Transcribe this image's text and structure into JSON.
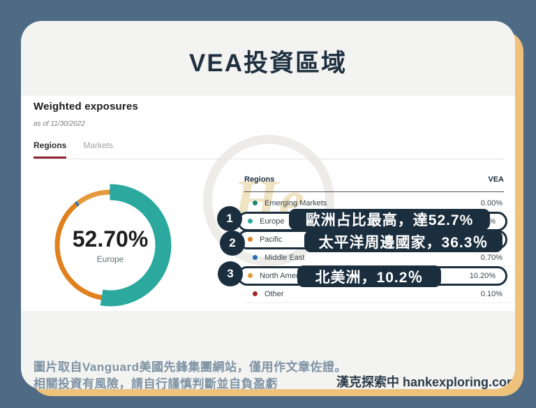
{
  "title": "VEA投資區域",
  "colors": {
    "background": "#4e6a84",
    "card": "#f3f3f1",
    "card_shadow": "#efc27c",
    "navy": "#1b2e3e",
    "tab_underline_red": "#8c2332",
    "europe_teal": "#2ba99f",
    "pacific_orange": "#e0811f",
    "middle_east_blue": "#2470b3",
    "north_america_orange": "#e59a3b",
    "other_red": "#9e2b25",
    "emerging_teal": "#1d8574"
  },
  "watermark": "He",
  "screenshot": {
    "heading": "Weighted exposures",
    "as_of": "as of 11/30/2022",
    "tabs": [
      {
        "label": "Regions",
        "active": true
      },
      {
        "label": "Markets",
        "active": false
      }
    ],
    "table": {
      "columns": [
        "Regions",
        "VEA"
      ],
      "rows": [
        {
          "label": "Emerging Markets",
          "value": "0.00%",
          "dot_color": "#1d8574",
          "highlighted": false
        },
        {
          "label": "Europe",
          "value": "52.70%",
          "dot_color": "#2ba99f",
          "highlighted": true
        },
        {
          "label": "Pacific",
          "value": "36.30%",
          "dot_color": "#e0811f",
          "highlighted": true
        },
        {
          "label": "Middle East",
          "value": "0.70%",
          "dot_color": "#2470b3",
          "highlighted": false
        },
        {
          "label": "North America",
          "value": "10.20%",
          "dot_color": "#e59a3b",
          "highlighted": true
        },
        {
          "label": "Other",
          "value": "0.10%",
          "dot_color": "#9e2b25",
          "highlighted": false
        }
      ]
    }
  },
  "annotations": [
    {
      "number": "1",
      "text": "歐洲占比最高，達52.7%"
    },
    {
      "number": "2",
      "text": "太平洋周邊國家，36.3％"
    },
    {
      "number": "3",
      "text": "北美洲，10.2％"
    }
  ],
  "footer": {
    "line1": "圖片取自Vanguard美國先鋒集團網站，僅用作文章佐證。",
    "line2": "相關投資有風險，請自行謹慎判斷並自負盈虧",
    "brand": "漢克探索中 hankexploring.com"
  },
  "chart_data": {
    "type": "pie",
    "variant": "donut",
    "title": "Weighted exposures — Regions (VEA)",
    "center_label": "52.70%",
    "center_sublabel": "Europe",
    "start_angle_deg": 0,
    "direction": "clockwise",
    "legend_position": "table-right",
    "series": [
      {
        "name": "Europe",
        "value": 52.7,
        "color": "#2ba99f",
        "emphasis": true
      },
      {
        "name": "Pacific",
        "value": 36.3,
        "color": "#e0811f",
        "emphasis": false
      },
      {
        "name": "Middle East",
        "value": 0.7,
        "color": "#2470b3",
        "emphasis": false
      },
      {
        "name": "North America",
        "value": 10.2,
        "color": "#e59a3b",
        "emphasis": false
      },
      {
        "name": "Other",
        "value": 0.1,
        "color": "#9e2b25",
        "emphasis": false
      },
      {
        "name": "Emerging Markets",
        "value": 0.0,
        "color": "#1d8574",
        "emphasis": false
      }
    ]
  }
}
